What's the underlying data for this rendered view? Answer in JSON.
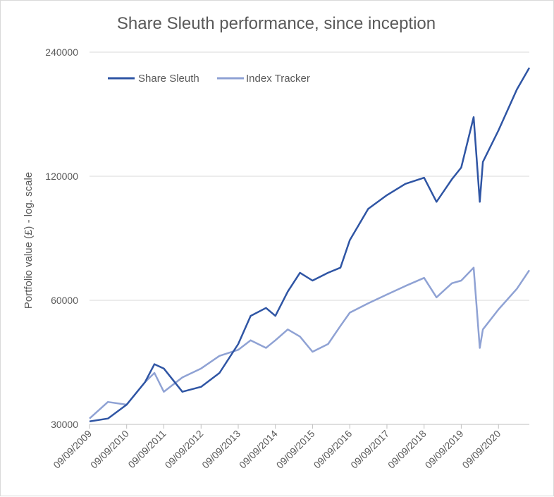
{
  "chart_data": {
    "type": "line",
    "title": "Share Sleuth performance, since inception",
    "xlabel": "",
    "ylabel": "Portfolio value (£) - log. scale",
    "y_scale": "log",
    "ylim": [
      30000,
      240000
    ],
    "y_ticks": [
      "30000",
      "60000",
      "120000",
      "240000"
    ],
    "y_tick_values": [
      30000,
      60000,
      120000,
      240000
    ],
    "x_ticks": [
      "09/09/2009",
      "09/09/2010",
      "09/09/2011",
      "09/09/2012",
      "09/09/2013",
      "09/09/2014",
      "09/09/2015",
      "09/09/2016",
      "09/09/2017",
      "09/09/2018",
      "09/09/2019",
      "09/09/2020"
    ],
    "grid": true,
    "legend_position": "top-left",
    "x": [
      "2009-09-09",
      "2010-03-09",
      "2010-09-09",
      "2011-03-09",
      "2011-06-09",
      "2011-09-09",
      "2012-03-09",
      "2012-09-09",
      "2013-03-09",
      "2013-09-09",
      "2014-01-09",
      "2014-06-09",
      "2014-09-09",
      "2015-01-09",
      "2015-05-09",
      "2015-09-09",
      "2016-02-09",
      "2016-06-09",
      "2016-09-09",
      "2017-03-09",
      "2017-09-09",
      "2018-03-09",
      "2018-09-09",
      "2019-01-09",
      "2019-06-09",
      "2019-09-09",
      "2020-01-09",
      "2020-03-09",
      "2020-04-09",
      "2020-09-09",
      "2021-03-09",
      "2021-07-09"
    ],
    "series": [
      {
        "name": "Share Sleuth",
        "color": "#2f55a4",
        "values": [
          30500,
          31000,
          33500,
          38000,
          42000,
          41000,
          36000,
          37000,
          40000,
          47000,
          55000,
          57500,
          55000,
          63000,
          70000,
          67000,
          70000,
          72000,
          84000,
          100000,
          108000,
          115000,
          119000,
          104000,
          118000,
          126000,
          167000,
          104000,
          130000,
          155000,
          195000,
          220000
        ]
      },
      {
        "name": "Index Tracker",
        "color": "#8fa2d4",
        "values": [
          31000,
          34000,
          33500,
          38000,
          40000,
          36000,
          39000,
          41000,
          44000,
          45500,
          48000,
          46000,
          48000,
          51000,
          49000,
          45000,
          47000,
          52000,
          56000,
          59000,
          62000,
          65000,
          68000,
          61000,
          66000,
          67000,
          72000,
          46000,
          51000,
          57000,
          64000,
          71000
        ]
      }
    ]
  }
}
